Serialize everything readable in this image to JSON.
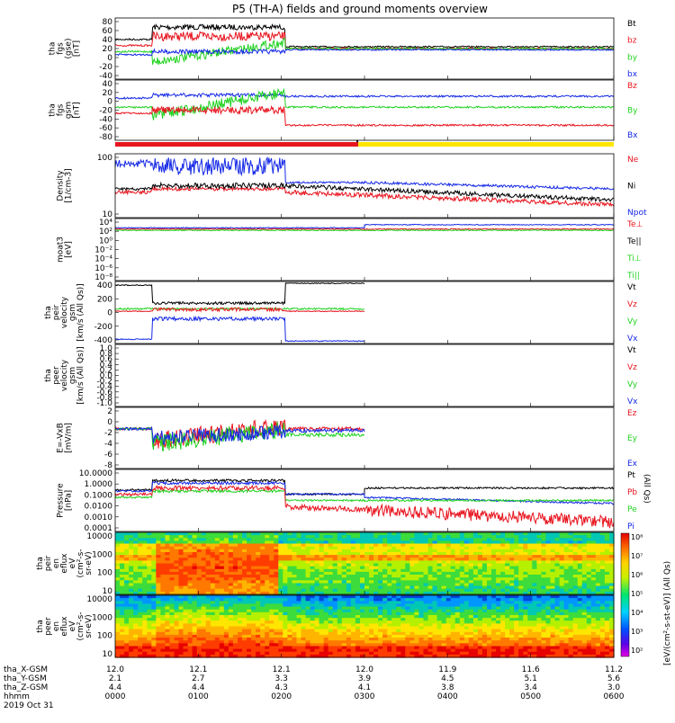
{
  "title": "P5 (TH-A) fields and ground moments overview",
  "colors": {
    "black": "#000000",
    "red": "#e8141e",
    "green": "#1ed21e",
    "blue": "#1428e6",
    "yellow": "#ffe600"
  },
  "time_axis": {
    "ticks": [
      "0000",
      "0100",
      "0200",
      "0300",
      "0400",
      "0500",
      "0600"
    ],
    "rows": [
      {
        "label": "tha_X-GSM",
        "values": [
          "12.0",
          "12.1",
          "12.1",
          "12.0",
          "11.9",
          "11.6",
          "11.2"
        ]
      },
      {
        "label": "tha_Y-GSM",
        "values": [
          "2.1",
          "2.7",
          "3.3",
          "3.9",
          "4.5",
          "5.1",
          "5.6"
        ]
      },
      {
        "label": "tha_Z-GSM",
        "values": [
          "4.4",
          "4.4",
          "4.3",
          "4.1",
          "3.8",
          "3.4",
          "3.0"
        ]
      },
      {
        "label": "hhmm",
        "values": [
          "0000",
          "0100",
          "0200",
          "0300",
          "0400",
          "0500",
          "0600"
        ]
      }
    ],
    "date": "2019 Oct 31"
  },
  "chart_data": [
    {
      "type": "line",
      "ylabel": [
        "tha",
        "fgs",
        "(gse)",
        "[nT]"
      ],
      "ylim": [
        -45,
        90
      ],
      "yticks": [
        "80",
        "60",
        "40",
        "20",
        "0",
        "-20",
        "-40"
      ],
      "series": [
        {
          "name": "Bt",
          "color": "#000000"
        },
        {
          "name": "bz",
          "color": "#e8141e"
        },
        {
          "name": "by",
          "color": "#1ed21e"
        },
        {
          "name": "bx",
          "color": "#1428e6"
        }
      ]
    },
    {
      "type": "line",
      "ylabel": [
        "tha",
        "fgs",
        "gsm",
        "[nT]"
      ],
      "ylim": [
        -90,
        45
      ],
      "yticks": [
        "40",
        "20",
        "0",
        "-20",
        "-40",
        "-60",
        "-80"
      ],
      "series": [
        {
          "name": "Bz",
          "color": "#e8141e"
        },
        {
          "name": "By",
          "color": "#1ed21e"
        },
        {
          "name": "Bx",
          "color": "#1428e6"
        }
      ]
    },
    {
      "type": "line",
      "ylabel": [
        "Density",
        "[1/cm-3]"
      ],
      "log": true,
      "yticks": [
        "100",
        "10"
      ],
      "series": [
        {
          "name": "Ne",
          "color": "#e8141e"
        },
        {
          "name": "Ni",
          "color": "#000000"
        },
        {
          "name": "Npot",
          "color": "#1428e6"
        }
      ]
    },
    {
      "type": "line",
      "ylabel": [
        "moat3",
        "[eV]"
      ],
      "log": true,
      "yticks": [
        "10⁴",
        "10²",
        "10⁰",
        "10⁻²",
        "10⁻⁴",
        "10⁻⁶",
        "10⁻⁸"
      ],
      "series": [
        {
          "name": "Te⊥",
          "color": "#e8141e"
        },
        {
          "name": "Te||",
          "color": "#000000"
        },
        {
          "name": "Ti⊥",
          "color": "#1ed21e"
        },
        {
          "name": "Ti||",
          "color": "#1ed21e"
        }
      ]
    },
    {
      "type": "line",
      "ylabel": [
        "tha",
        "peir",
        "velocity",
        "gsm",
        "[km/s (All Qs)]"
      ],
      "ylim": [
        -430,
        430
      ],
      "yticks": [
        "400",
        "200",
        "0",
        "-200",
        "-400"
      ],
      "series": [
        {
          "name": "Vt",
          "color": "#000000"
        },
        {
          "name": "Vz",
          "color": "#e8141e"
        },
        {
          "name": "Vy",
          "color": "#1ed21e"
        },
        {
          "name": "Vx",
          "color": "#1428e6"
        }
      ]
    },
    {
      "type": "line",
      "ylabel": [
        "tha",
        "peer",
        "velocity",
        "gsm",
        "[km/s (All Qs)]"
      ],
      "yticks": [
        "1.0",
        "0.8",
        "0.6",
        "0.4",
        "0.2",
        "0.0",
        "-0.2",
        "-0.4",
        "-0.6",
        "-0.8",
        "-1.0"
      ],
      "series": [
        {
          "name": "Vt",
          "color": "#000000"
        },
        {
          "name": "Vz",
          "color": "#e8141e"
        },
        {
          "name": "Vy",
          "color": "#1ed21e"
        },
        {
          "name": "Vx",
          "color": "#1428e6"
        }
      ]
    },
    {
      "type": "line",
      "ylabel": [
        "E=-VxB",
        "[mV/m]"
      ],
      "ylim": [
        -9,
        3
      ],
      "yticks": [
        "2",
        "0",
        "-2",
        "-4",
        "-6",
        "-8"
      ],
      "series": [
        {
          "name": "Ez",
          "color": "#e8141e"
        },
        {
          "name": "Ey",
          "color": "#1ed21e"
        },
        {
          "name": "Ex",
          "color": "#1428e6"
        }
      ]
    },
    {
      "type": "line",
      "ylabel": [
        "Pressure",
        "[nPa]"
      ],
      "log": true,
      "yticks": [
        "10.0000",
        "1.0000",
        "0.1000",
        "0.0100",
        "0.0010",
        "0.0001"
      ],
      "series": [
        {
          "name": "Pt",
          "color": "#000000"
        },
        {
          "name": "Pb",
          "color": "#e8141e"
        },
        {
          "name": "Pe",
          "color": "#1ed21e"
        },
        {
          "name": "Pi",
          "color": "#1428e6"
        }
      ],
      "side_label": "(All Qs)"
    },
    {
      "type": "heatmap",
      "ylabel": [
        "tha",
        "peir",
        "en",
        "eflux",
        "eV",
        "(cm²-s-",
        "sr-eV)"
      ],
      "yticks": [
        "10000",
        "1000",
        "100",
        "10"
      ]
    },
    {
      "type": "heatmap",
      "ylabel": [
        "tha",
        "peer",
        "en",
        "eflux",
        "eV",
        "(cm²-s-",
        "sr-eV)"
      ],
      "yticks": [
        "10000",
        "1000",
        "100",
        "10"
      ]
    }
  ],
  "colorbar": {
    "ticks": [
      "10⁸",
      "10⁷",
      "10⁶",
      "10⁵",
      "10⁴",
      "10³",
      "10²"
    ],
    "label": "[eV/(cm²-s-st-eV)] (All Qs)"
  }
}
